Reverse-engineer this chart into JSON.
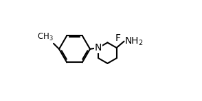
{
  "bg_color": "#ffffff",
  "line_color": "#000000",
  "lw": 1.5,
  "fs": 9,
  "dbl_off": 0.011
}
